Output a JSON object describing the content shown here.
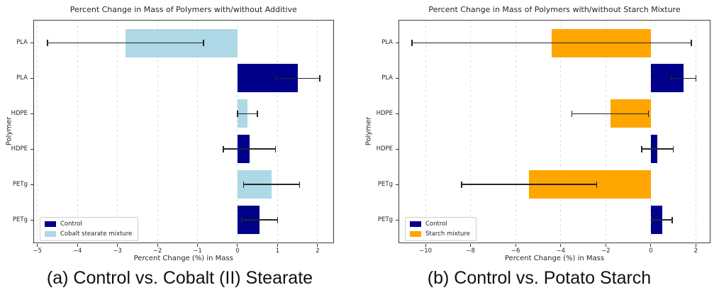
{
  "figure": {
    "background": "#ffffff"
  },
  "captions": [
    {
      "label": "(a) Control vs. Cobalt (II) Stearate"
    },
    {
      "label": "(b) Control vs. Potato Starch"
    }
  ],
  "colors": {
    "control": "#00008B",
    "cobalt": "#ADD8E6",
    "starch": "#FFA500",
    "errorbar": "#262626",
    "grid": "#dcdcdc",
    "spine": "#3d3d3d"
  },
  "chart_data": [
    {
      "type": "bar",
      "orientation": "horizontal",
      "title": "Percent Change in Mass of Polymers with/without Additive",
      "xlabel": "Percent Change (%) in Mass",
      "ylabel": "Polymer",
      "xlim": [
        -5.1,
        2.4
      ],
      "xticks": [
        -5,
        -4,
        -3,
        -2,
        -1,
        0,
        1,
        2
      ],
      "grid": true,
      "legend": {
        "position": "lower left",
        "entries": [
          {
            "label": "Control",
            "color_key": "control"
          },
          {
            "label": "Cobalt stearate mixture",
            "color_key": "cobalt"
          }
        ]
      },
      "rows": [
        {
          "category": "PLA",
          "series": "Cobalt stearate mixture",
          "value": -2.8,
          "error": 1.95,
          "color_key": "cobalt"
        },
        {
          "category": "PLA",
          "series": "Control",
          "value": 1.5,
          "error": 0.55,
          "color_key": "control"
        },
        {
          "category": "HDPE",
          "series": "Cobalt stearate mixture",
          "value": 0.25,
          "error": 0.25,
          "color_key": "cobalt"
        },
        {
          "category": "HDPE",
          "series": "Control",
          "value": 0.3,
          "error": 0.65,
          "color_key": "control"
        },
        {
          "category": "PETg",
          "series": "Cobalt stearate mixture",
          "value": 0.85,
          "error": 0.7,
          "color_key": "cobalt"
        },
        {
          "category": "PETg",
          "series": "Control",
          "value": 0.55,
          "error": 0.45,
          "color_key": "control"
        }
      ]
    },
    {
      "type": "bar",
      "orientation": "horizontal",
      "title": "Percent Change in Mass of Polymers with/without Starch Mixture",
      "xlabel": "Percent Change (%) in Mass",
      "ylabel": "Polymer",
      "xlim": [
        -11.2,
        2.65
      ],
      "xticks": [
        -10,
        -8,
        -6,
        -4,
        -2,
        0,
        2
      ],
      "grid": true,
      "legend": {
        "position": "lower left",
        "entries": [
          {
            "label": "Control",
            "color_key": "control"
          },
          {
            "label": "Starch mixture",
            "color_key": "starch"
          }
        ]
      },
      "rows": [
        {
          "category": "PLA",
          "series": "Starch mixture",
          "value": -4.4,
          "error": 6.2,
          "color_key": "starch"
        },
        {
          "category": "PLA",
          "series": "Control",
          "value": 1.45,
          "error": 0.55,
          "color_key": "control"
        },
        {
          "category": "HDPE",
          "series": "Starch mixture",
          "value": -1.8,
          "error": 1.7,
          "color_key": "starch"
        },
        {
          "category": "HDPE",
          "series": "Control",
          "value": 0.3,
          "error": 0.7,
          "color_key": "control"
        },
        {
          "category": "PETg",
          "series": "Starch mixture",
          "value": -5.4,
          "error": 3.0,
          "color_key": "starch"
        },
        {
          "category": "PETg",
          "series": "Control",
          "value": 0.5,
          "error": 0.45,
          "color_key": "control"
        }
      ]
    }
  ]
}
